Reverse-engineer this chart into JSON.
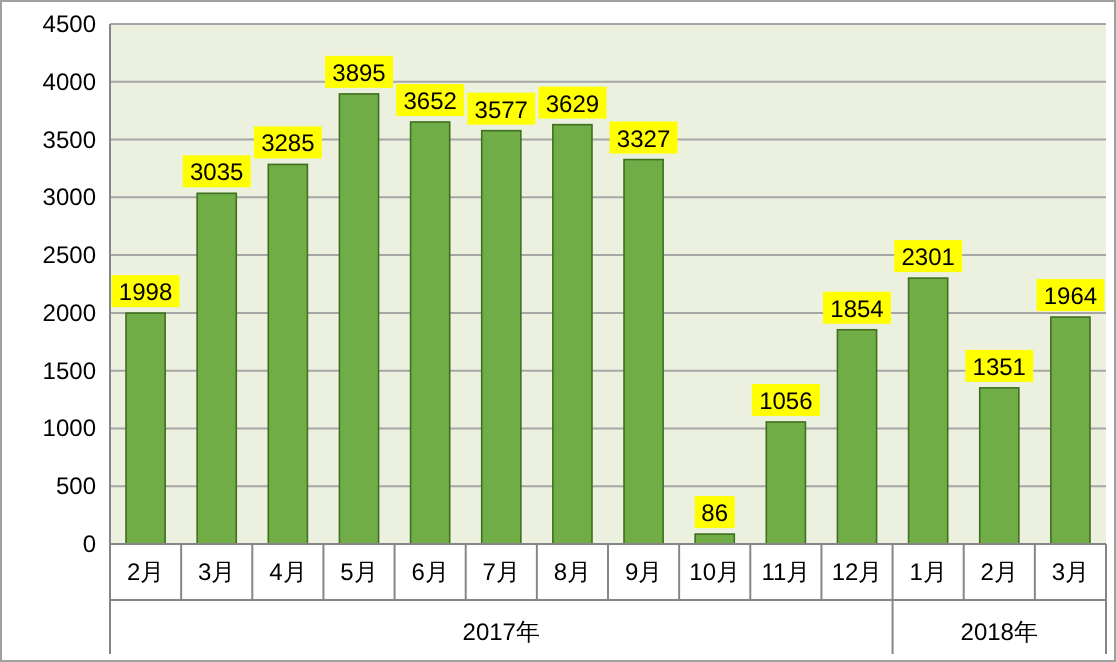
{
  "chart_data": {
    "type": "bar",
    "categories": [
      "2月",
      "3月",
      "4月",
      "5月",
      "6月",
      "7月",
      "8月",
      "9月",
      "10月",
      "11月",
      "12月",
      "1月",
      "2月",
      "3月"
    ],
    "values": [
      1998,
      3035,
      3285,
      3895,
      3652,
      3577,
      3629,
      3327,
      86,
      1056,
      1854,
      2301,
      1351,
      1964
    ],
    "color": "#70ad47",
    "ylim": [
      0,
      4500
    ],
    "yticks": [
      0,
      500,
      1000,
      1500,
      2000,
      2500,
      3000,
      3500,
      4000,
      4500
    ],
    "grid": "y",
    "data_labels": true,
    "annotations": [
      "2017年",
      "2018年"
    ]
  }
}
